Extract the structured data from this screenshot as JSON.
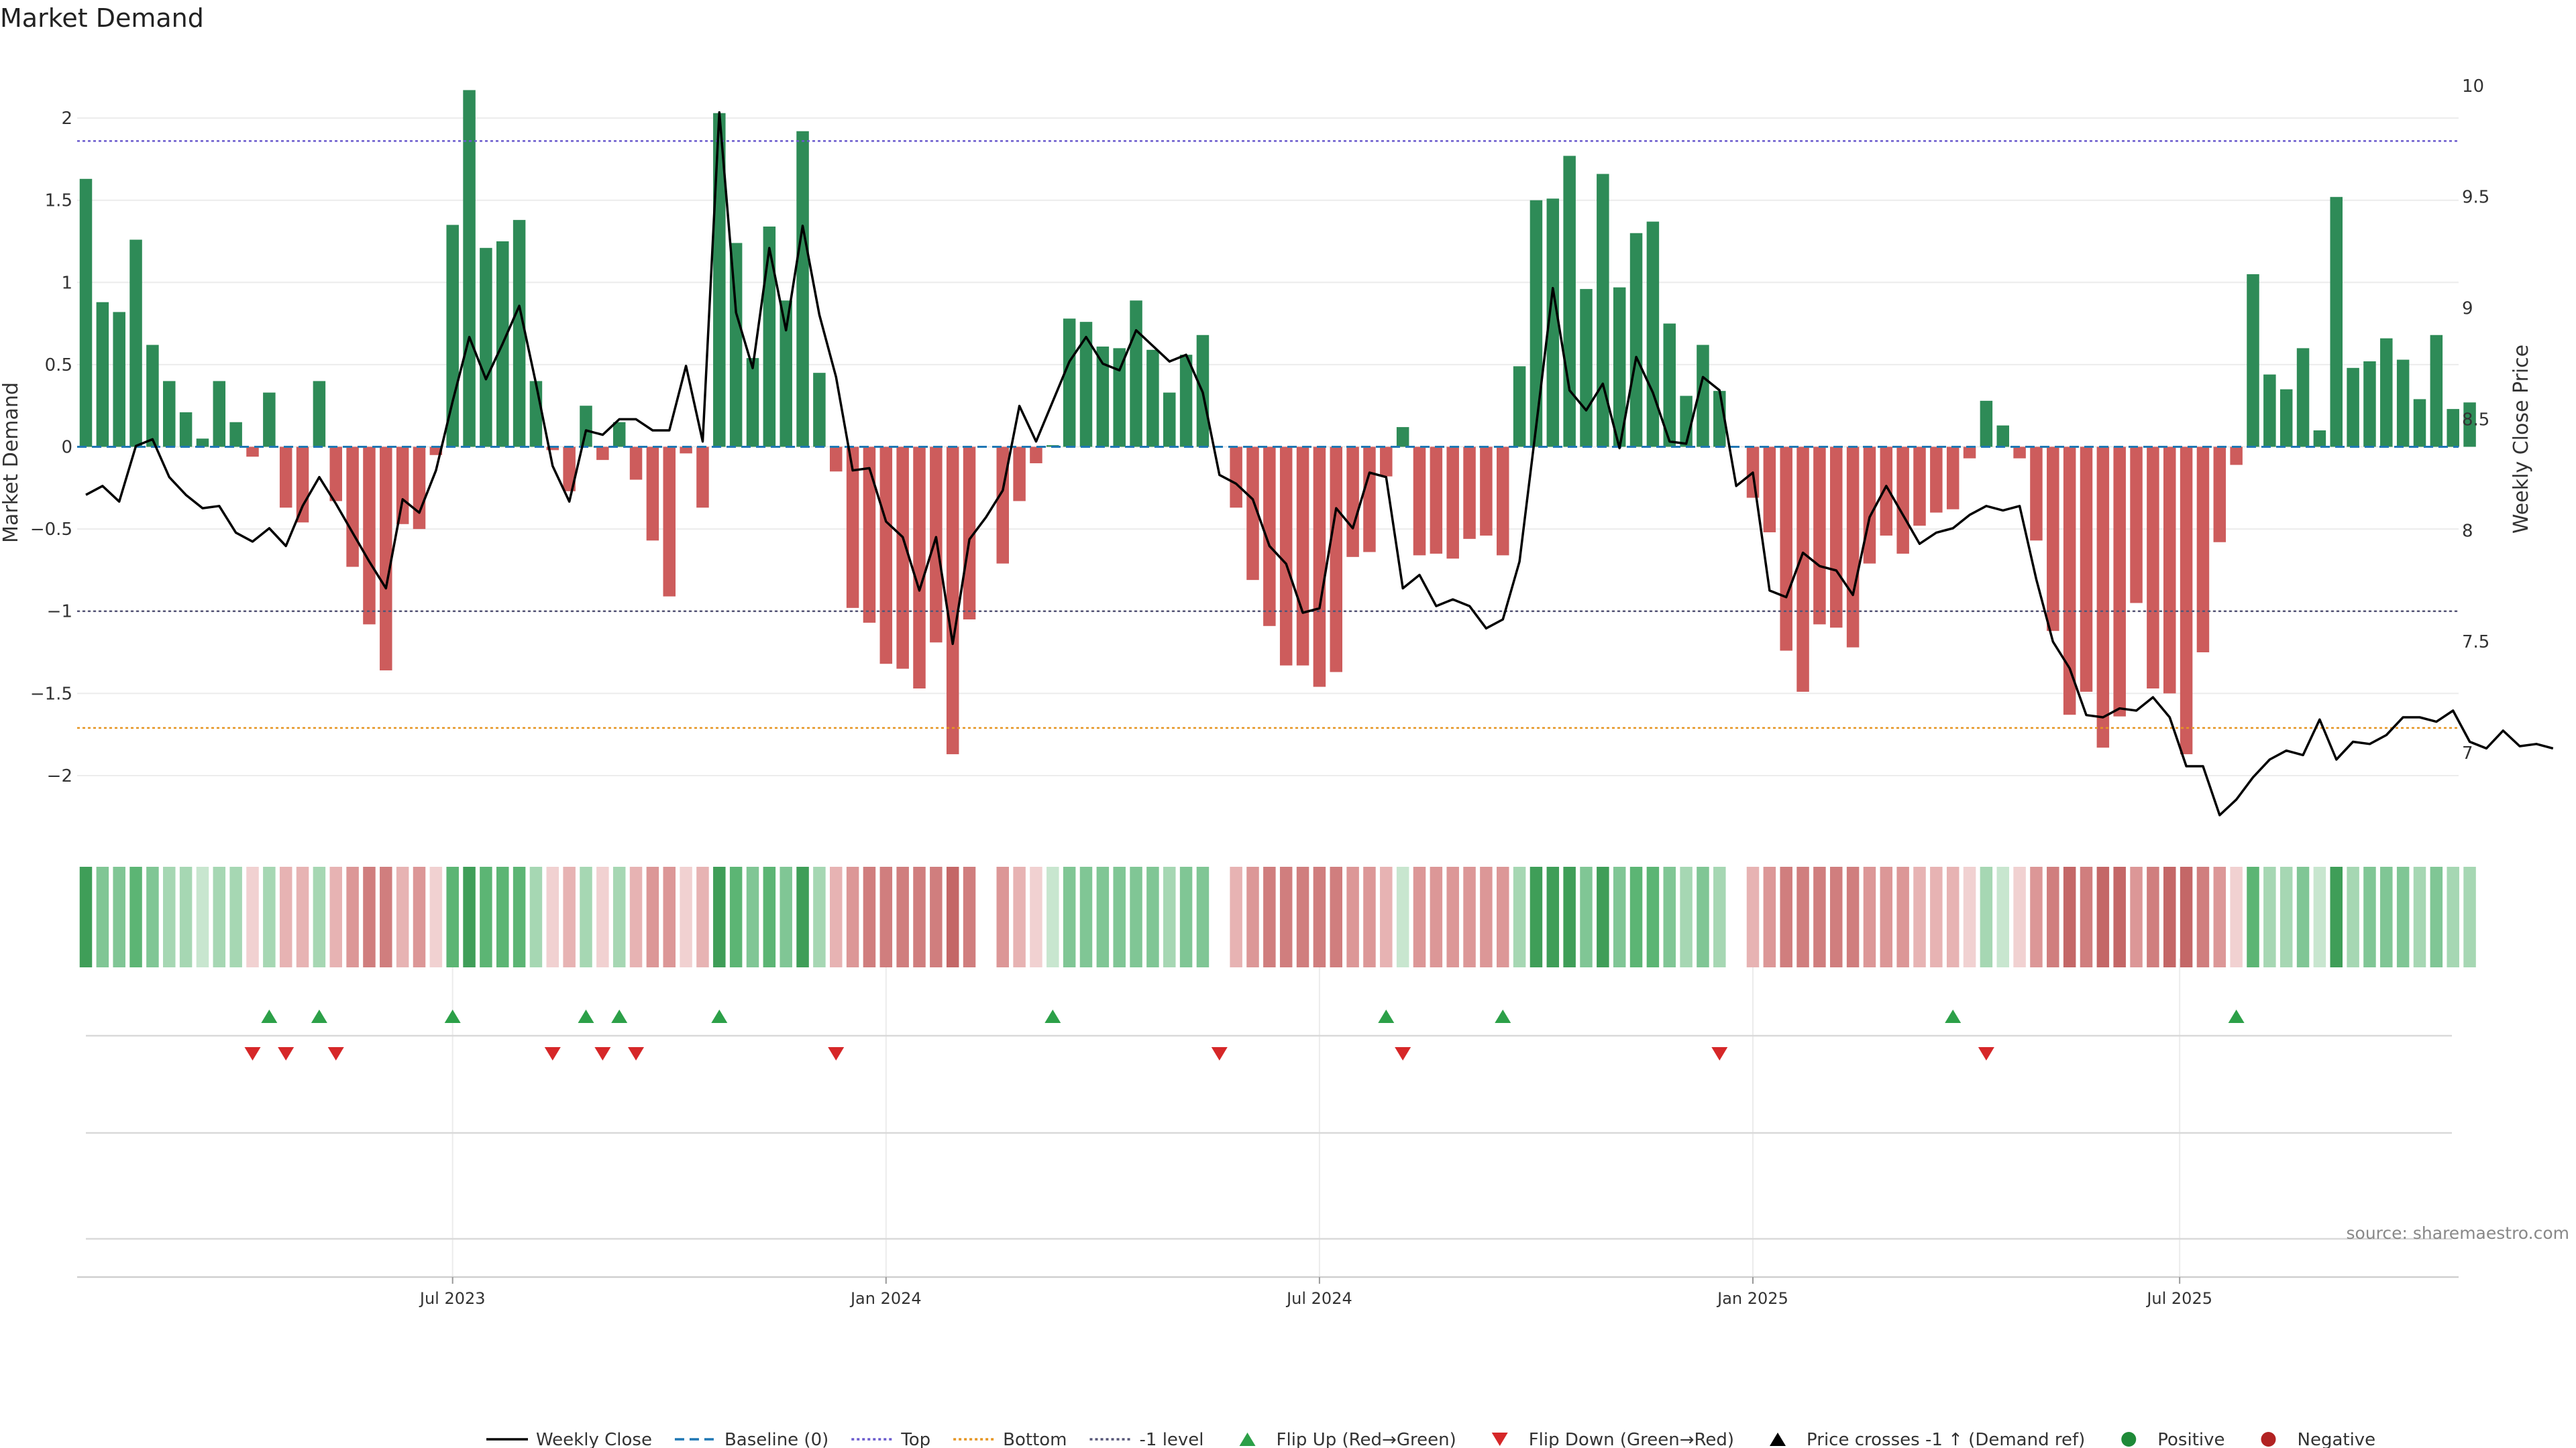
{
  "chart_data": {
    "type": "bar",
    "title": "Market Demand",
    "ylabel": "Market Demand",
    "y2label": "Weekly Close Price",
    "source": "source: sharemaestro.com",
    "ylim": [
      -2.2,
      2.4
    ],
    "y2lim": [
      6.75,
      10.15
    ],
    "y_ticks": [
      2,
      1.5,
      1,
      0.5,
      0,
      -0.5,
      -1,
      -1.5,
      -2
    ],
    "y_tick_labels": [
      "2",
      "1.5",
      "1",
      "0.5",
      "0",
      "−0.5",
      "−1",
      "−1.5",
      "−2"
    ],
    "y2_ticks": [
      10,
      9.5,
      9,
      8.5,
      8,
      7.5,
      7
    ],
    "y2_tick_labels": [
      "10",
      "9.5",
      "9",
      "8.5",
      "8",
      "7.5",
      "7"
    ],
    "x_ticks": [
      {
        "label": "Jul 2023",
        "week": 22
      },
      {
        "label": "Jan 2024",
        "week": 48
      },
      {
        "label": "Jul 2024",
        "week": 74
      },
      {
        "label": "Jan 2025",
        "week": 100
      },
      {
        "label": "Jul 2025",
        "week": 125.6
      }
    ],
    "reference_lines": {
      "top": 1.86,
      "bottom": -1.71,
      "minus_one": -1.0,
      "baseline": 0
    },
    "demand": [
      1.63,
      0.88,
      0.82,
      1.26,
      0.62,
      0.4,
      0.21,
      0.05,
      0.4,
      0.15,
      -0.06,
      0.33,
      -0.37,
      -0.46,
      0.4,
      -0.33,
      -0.73,
      -1.08,
      -1.36,
      -0.47,
      -0.5,
      -0.05,
      1.35,
      2.17,
      1.21,
      1.25,
      1.38,
      0.4,
      -0.02,
      -0.27,
      0.25,
      -0.08,
      0.15,
      -0.2,
      -0.57,
      -0.91,
      -0.04,
      -0.37,
      2.03,
      1.24,
      0.54,
      1.34,
      0.89,
      1.92,
      0.45,
      -0.15,
      -0.98,
      -1.07,
      -1.32,
      -1.35,
      -1.47,
      -1.19,
      -1.87,
      -1.05,
      0,
      -0.71,
      -0.33,
      -0.1,
      0.01,
      0.78,
      0.76,
      0.61,
      0.6,
      0.89,
      0.59,
      0.33,
      0.56,
      0.68,
      0,
      -0.37,
      -0.81,
      -1.09,
      -1.33,
      -1.33,
      -1.46,
      -1.37,
      -0.67,
      -0.64,
      -0.18,
      0.12,
      -0.66,
      -0.65,
      -0.68,
      -0.56,
      -0.54,
      -0.66,
      0.49,
      1.5,
      1.51,
      1.77,
      0.96,
      1.66,
      0.97,
      1.3,
      1.37,
      0.75,
      0.31,
      0.62,
      0.34,
      0,
      -0.31,
      -0.52,
      -1.24,
      -1.49,
      -1.08,
      -1.1,
      -1.22,
      -0.71,
      -0.54,
      -0.65,
      -0.48,
      -0.4,
      -0.38,
      -0.07,
      0.28,
      0.13,
      -0.07,
      -0.57,
      -1.12,
      -1.63,
      -1.49,
      -1.83,
      -1.64,
      -0.95,
      -1.47,
      -1.5,
      -1.87,
      -1.25,
      -0.58,
      -0.11,
      1.05,
      0.44,
      0.35,
      0.6,
      0.1,
      1.52,
      0.48,
      0.52,
      0.66,
      0.53,
      0.29,
      0.68,
      0.23,
      0.27
    ],
    "weekly_close": [
      8.16,
      8.2,
      8.13,
      8.38,
      8.41,
      8.24,
      8.16,
      8.1,
      8.11,
      7.99,
      7.95,
      8.01,
      7.93,
      8.11,
      8.24,
      8.12,
      7.99,
      7.86,
      7.74,
      8.14,
      8.08,
      8.27,
      8.58,
      8.87,
      8.68,
      8.84,
      9.01,
      8.66,
      8.29,
      8.13,
      8.45,
      8.43,
      8.5,
      8.5,
      8.45,
      8.45,
      8.74,
      8.4,
      9.88,
      8.98,
      8.73,
      9.27,
      8.9,
      9.37,
      8.97,
      8.69,
      8.27,
      8.28,
      8.04,
      7.97,
      7.73,
      7.97,
      7.49,
      7.96,
      8.06,
      8.18,
      8.56,
      8.4,
      8.58,
      8.76,
      8.87,
      8.75,
      8.72,
      8.9,
      8.83,
      8.76,
      8.79,
      8.62,
      8.25,
      8.21,
      8.14,
      7.93,
      7.85,
      7.63,
      7.65,
      8.1,
      8.01,
      8.26,
      8.24,
      7.74,
      7.8,
      7.66,
      7.69,
      7.66,
      7.56,
      7.6,
      7.86,
      8.47,
      9.09,
      8.63,
      8.54,
      8.66,
      8.37,
      8.78,
      8.62,
      8.4,
      8.39,
      8.69,
      8.63,
      8.2,
      8.26,
      7.73,
      7.7,
      7.9,
      7.84,
      7.82,
      7.71,
      8.06,
      8.2,
      8.07,
      7.94,
      7.99,
      8.01,
      8.07,
      8.11,
      8.09,
      8.11,
      7.78,
      7.5,
      7.38,
      7.17,
      7.16,
      7.2,
      7.19,
      7.25,
      7.16,
      6.94,
      6.94,
      6.72,
      6.79,
      6.89,
      6.97,
      7.01,
      6.99,
      7.15,
      6.97,
      7.05,
      7.04,
      7.08,
      7.16,
      7.16,
      7.14,
      7.19,
      7.05,
      7.02,
      7.1,
      7.03,
      7.04,
      7.02
    ],
    "flip_up_weeks": [
      11,
      14,
      22,
      30,
      32,
      38,
      58,
      78,
      85,
      112,
      129
    ],
    "flip_down_weeks": [
      10,
      12,
      15,
      28,
      31,
      33,
      45,
      68,
      79,
      98,
      114
    ],
    "legend": [
      {
        "label": "Weekly Close",
        "kind": "line",
        "color": "#000000"
      },
      {
        "label": "Baseline (0)",
        "kind": "dash",
        "color": "#1f77b4"
      },
      {
        "label": "Top",
        "kind": "dot",
        "color": "#6a5acd"
      },
      {
        "label": "Bottom",
        "kind": "dot",
        "color": "#e69522"
      },
      {
        "label": "-1 level",
        "kind": "dot",
        "color": "#555577"
      },
      {
        "label": "Flip Up (Red→Green)",
        "kind": "tri-up",
        "color": "#2ca048"
      },
      {
        "label": "Flip Down (Green→Red)",
        "kind": "tri-down",
        "color": "#d62728"
      },
      {
        "label": "Price crosses -1 ↑ (Demand ref)",
        "kind": "tri-up",
        "color": "#000000"
      },
      {
        "label": "Positive",
        "kind": "circle",
        "color": "#1e8a38"
      },
      {
        "label": "Negative",
        "kind": "circle",
        "color": "#b22222"
      }
    ],
    "colors": {
      "positive_bar": "#2e8b57",
      "negative_bar": "#cd5c5c",
      "price_line": "#000000",
      "baseline": "#1f77b4",
      "top_line": "#6a5acd",
      "bottom_line": "#e69522",
      "minus_one_line": "#555577"
    }
  }
}
